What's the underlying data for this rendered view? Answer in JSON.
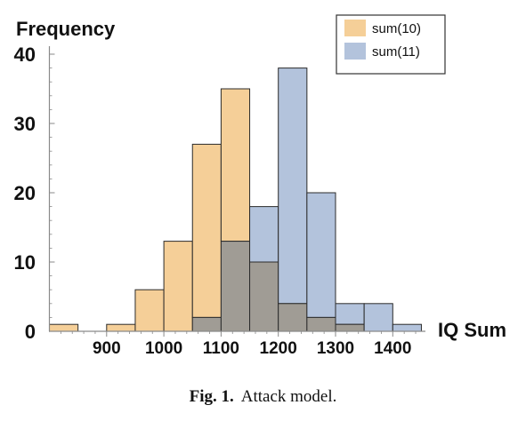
{
  "chart_data": {
    "type": "histogram",
    "ylabel": "Frequency",
    "xlabel": "IQ Sum",
    "xlim": [
      800,
      1460
    ],
    "ylim": [
      0,
      40
    ],
    "x_ticks": [
      900,
      1000,
      1100,
      1200,
      1300,
      1400
    ],
    "y_ticks": [
      0,
      10,
      20,
      30,
      40
    ],
    "bin_width": 50,
    "legend_position": "top-right",
    "overlap_color": "#a09c95",
    "series": [
      {
        "name": "sum(10)",
        "color": "#f5cf98",
        "bins": [
          {
            "start": 800,
            "end": 850,
            "count": 1
          },
          {
            "start": 900,
            "end": 950,
            "count": 1
          },
          {
            "start": 950,
            "end": 1000,
            "count": 6
          },
          {
            "start": 1000,
            "end": 1050,
            "count": 13
          },
          {
            "start": 1050,
            "end": 1100,
            "count": 27
          },
          {
            "start": 1100,
            "end": 1150,
            "count": 35
          },
          {
            "start": 1150,
            "end": 1200,
            "count": 10
          },
          {
            "start": 1200,
            "end": 1250,
            "count": 4
          },
          {
            "start": 1250,
            "end": 1300,
            "count": 2
          },
          {
            "start": 1300,
            "end": 1350,
            "count": 1
          }
        ]
      },
      {
        "name": "sum(11)",
        "color": "#b3c3dc",
        "bins": [
          {
            "start": 1050,
            "end": 1100,
            "count": 2
          },
          {
            "start": 1100,
            "end": 1150,
            "count": 13
          },
          {
            "start": 1150,
            "end": 1200,
            "count": 18
          },
          {
            "start": 1200,
            "end": 1250,
            "count": 38
          },
          {
            "start": 1250,
            "end": 1300,
            "count": 20
          },
          {
            "start": 1300,
            "end": 1350,
            "count": 4
          },
          {
            "start": 1350,
            "end": 1400,
            "count": 4
          },
          {
            "start": 1400,
            "end": 1450,
            "count": 1
          }
        ]
      }
    ]
  },
  "caption": {
    "label": "Fig. 1.",
    "text": "Attack model."
  }
}
